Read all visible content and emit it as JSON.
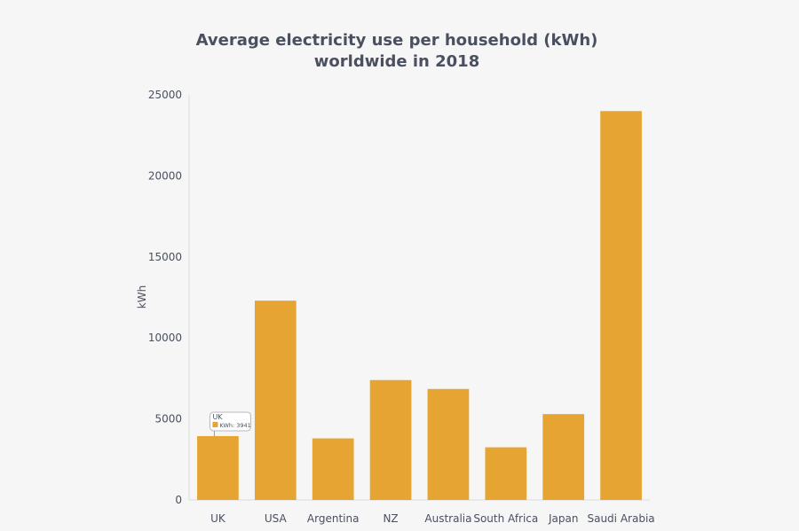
{
  "chart_data": {
    "type": "bar",
    "title_lines": [
      "Average electricity use per household (kWh)",
      "worldwide in 2018"
    ],
    "xlabel": "",
    "ylabel": "kWh",
    "categories": [
      "UK",
      "USA",
      "Argentina",
      "NZ",
      "Australia",
      "South Africa",
      "Japan",
      "Saudi Arabia"
    ],
    "series": [
      {
        "name": "kWh",
        "values": [
          3941,
          12300,
          3800,
          7400,
          6850,
          3250,
          5300,
          24000
        ]
      }
    ],
    "ylim": [
      0,
      25000
    ],
    "yticks": [
      0,
      5000,
      10000,
      15000,
      20000,
      25000
    ],
    "ytick_labels": [
      "0",
      "5000",
      "10000",
      "15000",
      "20000",
      "25000"
    ],
    "grid": false,
    "colors": {
      "bar": "#e6a532",
      "text": "#4a5060",
      "axis": "#dcdcdc",
      "background": "#f6f6f6"
    },
    "tooltip": {
      "category": "UK",
      "label": "UK",
      "value_text": "KWh: 3941"
    }
  }
}
